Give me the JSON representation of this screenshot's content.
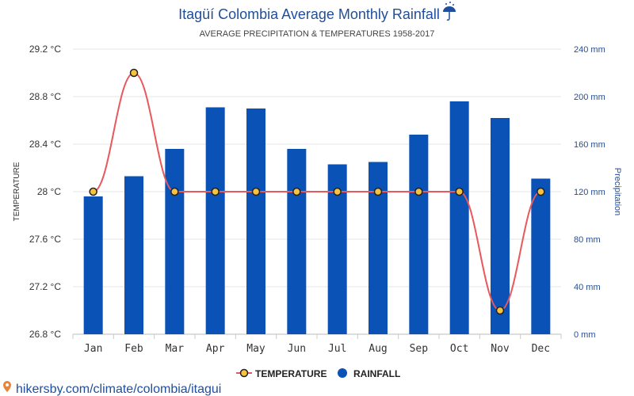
{
  "chart_data": {
    "type": "bar",
    "title": "Itagüí Colombia Average Monthly Rainfall",
    "title_icon": "umbrella-rain-icon",
    "subtitle": "AVERAGE PRECIPITATION & TEMPERATURES 1958-2017",
    "categories": [
      "Jan",
      "Feb",
      "Mar",
      "Apr",
      "May",
      "Jun",
      "Jul",
      "Aug",
      "Sep",
      "Oct",
      "Nov",
      "Dec"
    ],
    "series": [
      {
        "name": "RAINFALL",
        "type": "bar",
        "axis": "right",
        "color": "#0a52b5",
        "values": [
          116,
          133,
          156,
          191,
          190,
          156,
          143,
          145,
          168,
          196,
          182,
          131
        ]
      },
      {
        "name": "TEMPERATURE",
        "type": "line",
        "axis": "left",
        "color": "#e8585c",
        "marker_fill": "#f5c242",
        "marker_stroke": "#222222",
        "values": [
          28,
          29,
          28,
          28,
          28,
          28,
          28,
          28,
          28,
          28,
          27,
          28
        ]
      }
    ],
    "left_axis": {
      "label": "TEMPERATURE",
      "range": [
        26.8,
        29.2
      ],
      "ticks": [
        26.8,
        27.2,
        27.6,
        28,
        28.4,
        28.8,
        29.2
      ],
      "tick_labels": [
        "26.8 °C",
        "27.2 °C",
        "27.6 °C",
        "28 °C",
        "28.4 °C",
        "28.8 °C",
        "29.2 °C"
      ]
    },
    "right_axis": {
      "label": "Precipitation",
      "range": [
        0,
        240
      ],
      "ticks": [
        0,
        40,
        80,
        120,
        160,
        200,
        240
      ],
      "tick_labels": [
        "0 mm",
        "40 mm",
        "80 mm",
        "120 mm",
        "160 mm",
        "200 mm",
        "240 mm"
      ]
    },
    "grid": true,
    "legend_position": "bottom-center",
    "legend": [
      {
        "label": "TEMPERATURE",
        "marker": "circle-outline"
      },
      {
        "label": "RAINFALL",
        "marker": "circle-filled"
      }
    ]
  },
  "footer": {
    "source_text": "hikersby.com/climate/colombia/itagui",
    "source_icon": "location-pin-icon"
  }
}
